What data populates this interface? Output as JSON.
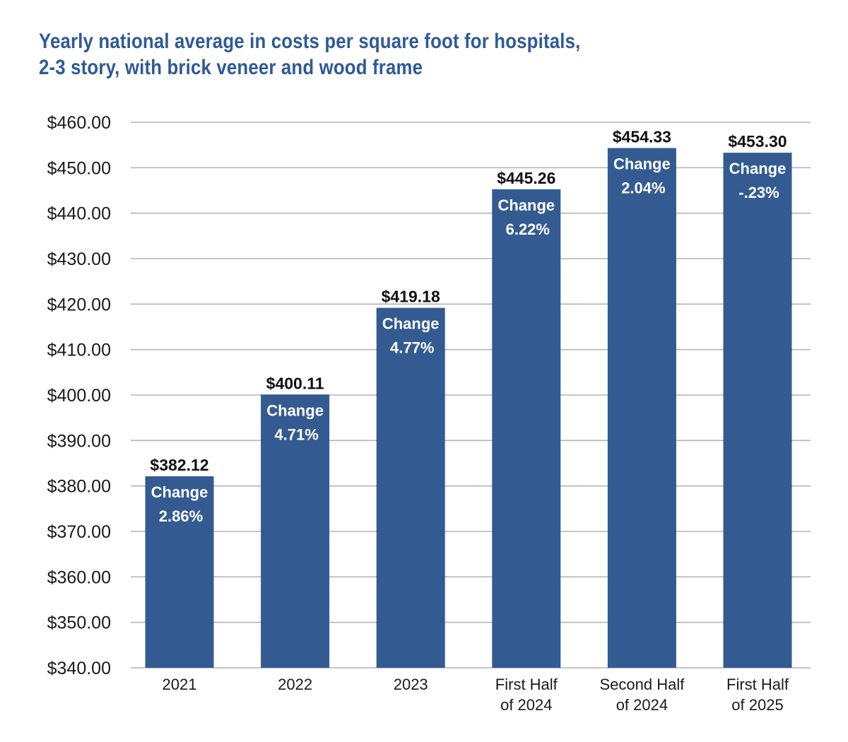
{
  "chart_data": {
    "type": "bar",
    "title": "Yearly national average in costs per square foot for hospitals, 2-3 story, with brick veneer and wood frame",
    "title_lines": [
      "Yearly national average in costs per square foot for hospitals,",
      "2-3 story, with brick veneer and wood frame"
    ],
    "categories": [
      "2021",
      "2022",
      "2023",
      "First Half of 2024",
      "Second Half of 2024",
      "First Half of 2025"
    ],
    "category_lines": [
      [
        "2021"
      ],
      [
        "2022"
      ],
      [
        "2023"
      ],
      [
        "First Half",
        "of 2024"
      ],
      [
        "Second Half",
        "of 2024"
      ],
      [
        "First Half",
        "of 2025"
      ]
    ],
    "values": [
      382.12,
      400.11,
      419.18,
      445.26,
      454.33,
      453.3
    ],
    "value_labels": [
      "$382.12",
      "$400.11",
      "$419.18",
      "$445.26",
      "$454.33",
      "$453.30"
    ],
    "change_word": "Change",
    "change_labels": [
      "2.86%",
      "4.71%",
      "4.77%",
      "6.22%",
      "2.04%",
      "-.23%"
    ],
    "xlabel": "",
    "ylabel": "",
    "ylim": [
      340,
      460
    ],
    "yticks": [
      340,
      350,
      360,
      370,
      380,
      390,
      400,
      410,
      420,
      430,
      440,
      450,
      460
    ],
    "ytick_labels": [
      "$340.00",
      "$350.00",
      "$360.00",
      "$370.00",
      "$380.00",
      "$390.00",
      "$400.00",
      "$410.00",
      "$420.00",
      "$430.00",
      "$440.00",
      "$450.00",
      "$460.00"
    ],
    "grid": true,
    "legend": "none",
    "colors": {
      "bar": "#335b91",
      "title": "#2f5a96",
      "grid": "#b4b4b4",
      "change_text": "#ffffff",
      "value_text": "#111111"
    }
  }
}
